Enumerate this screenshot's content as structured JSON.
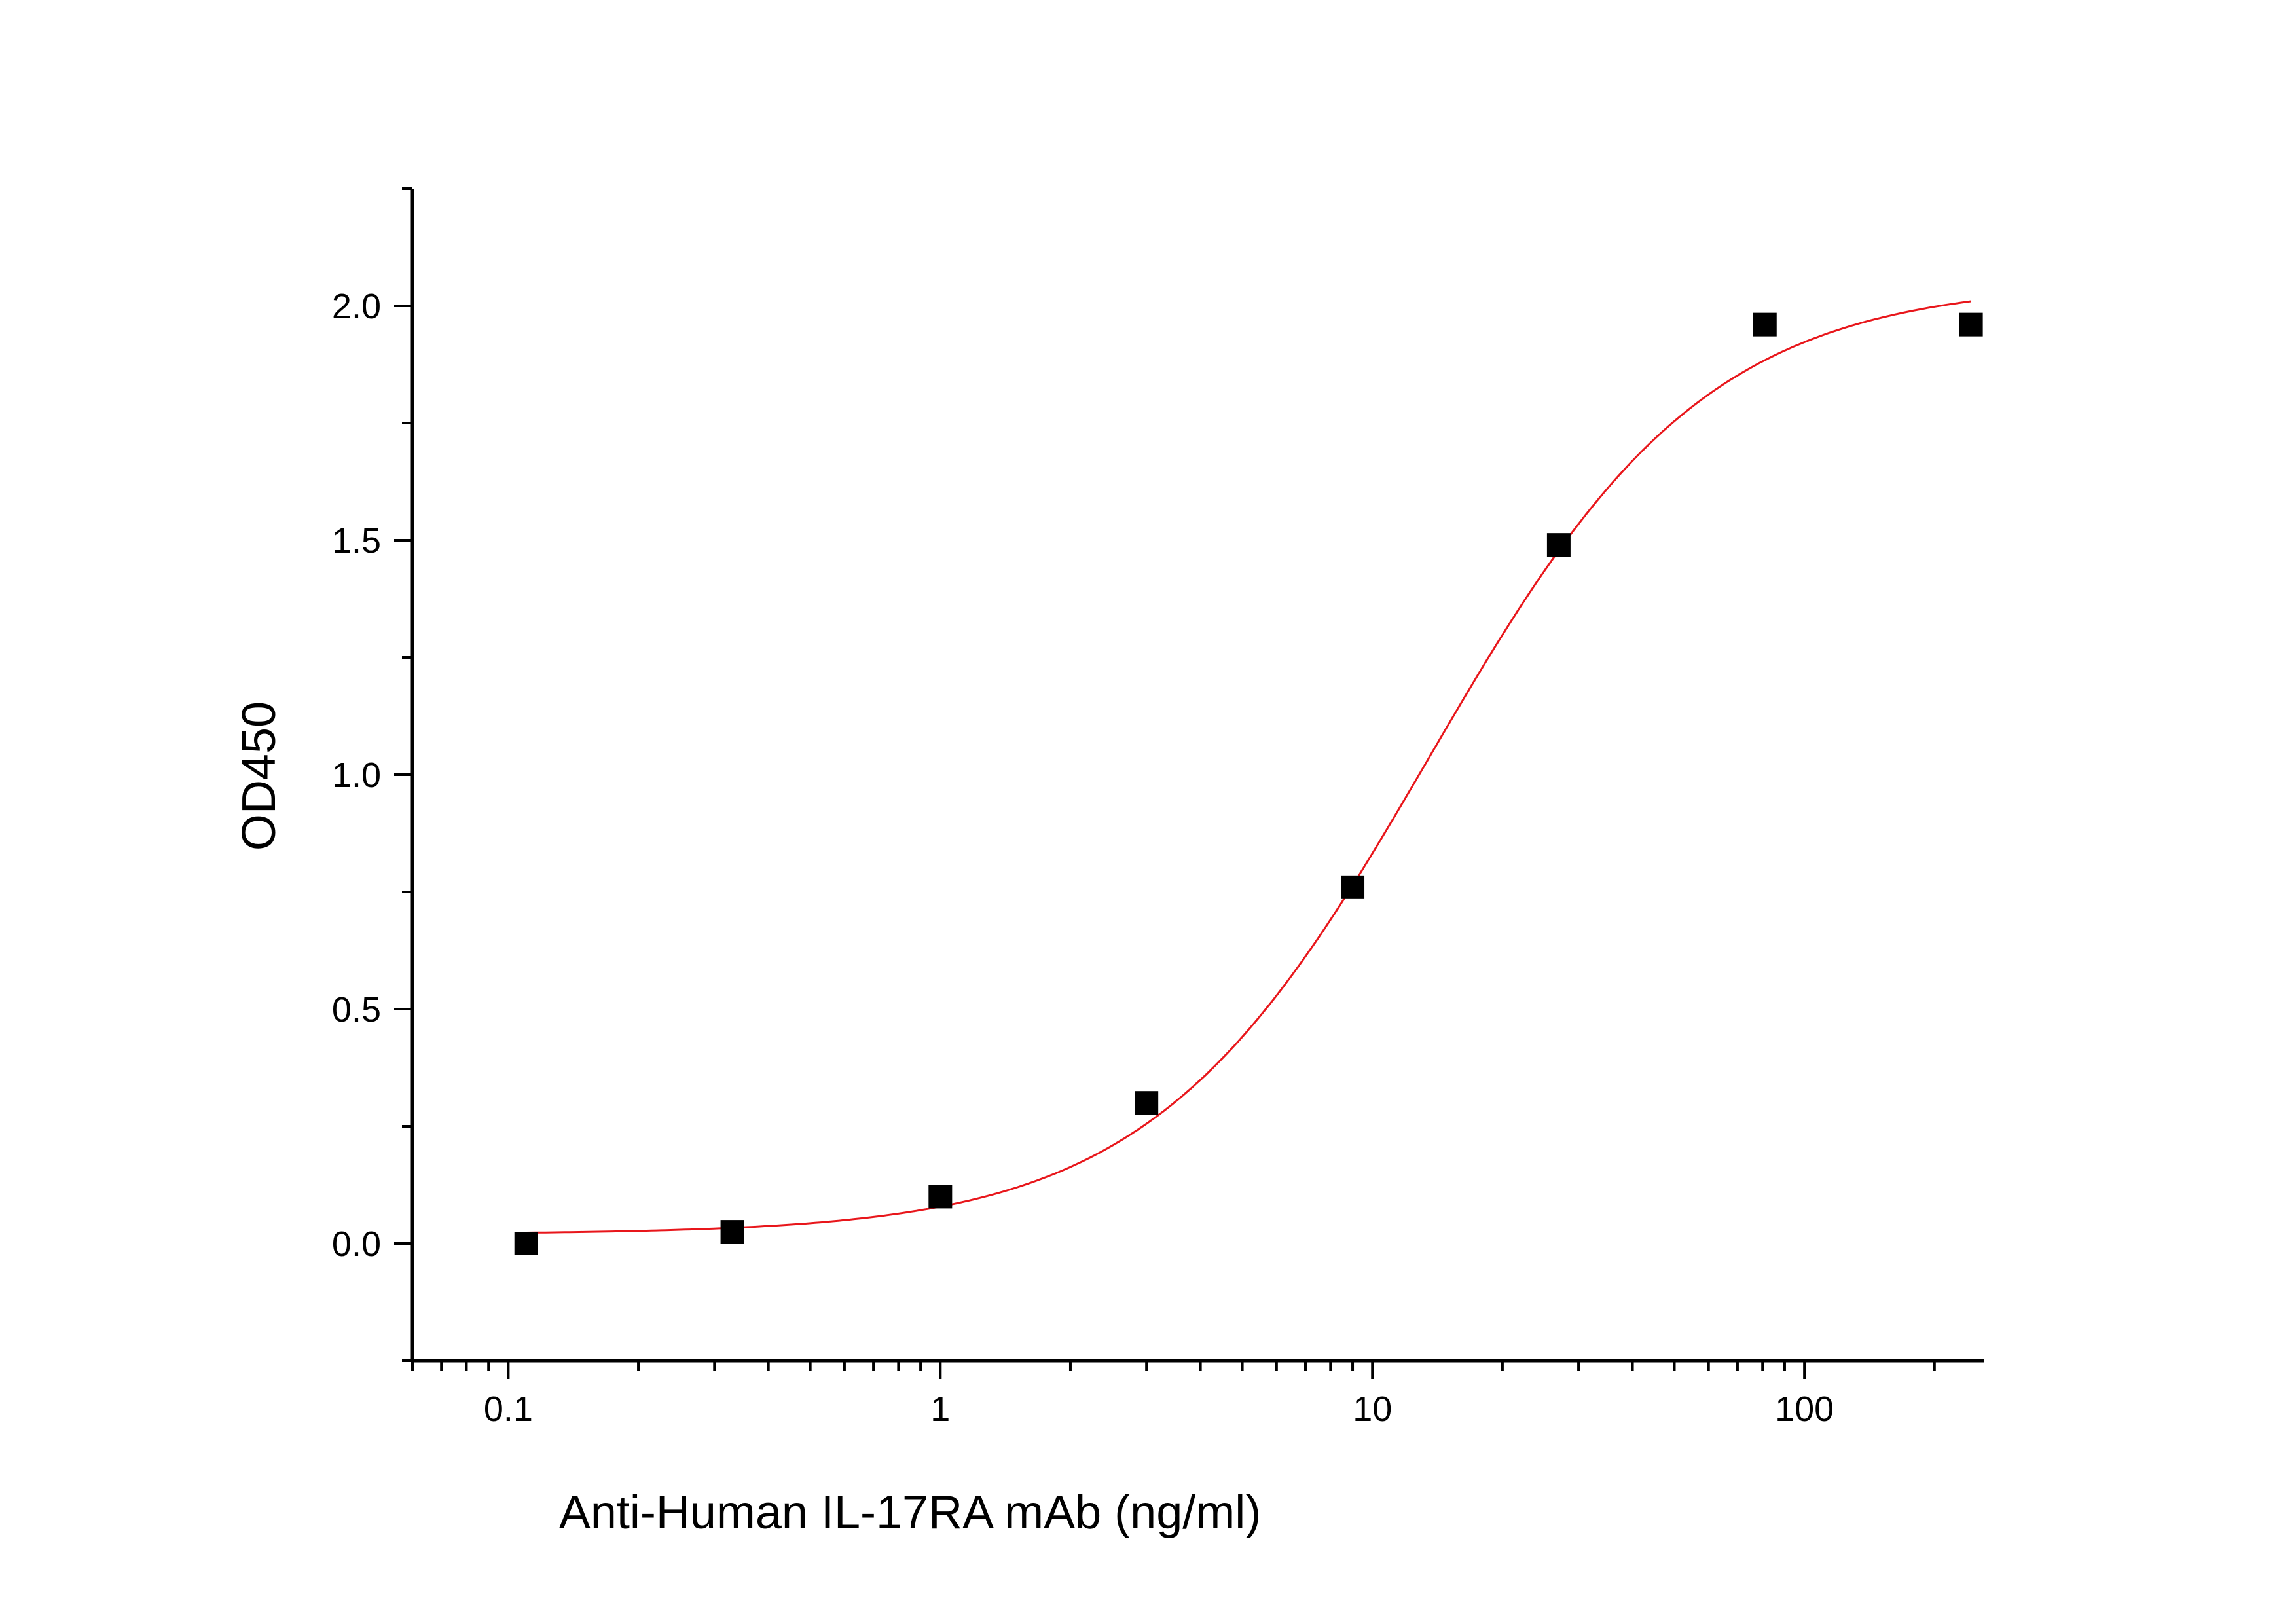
{
  "chart_data": {
    "type": "scatter",
    "title": "",
    "xlabel": "Anti-Human IL-17RA mAb (ng/ml)",
    "ylabel": "OD450",
    "xscale": "log",
    "xlim": [
      0.06,
      260
    ],
    "ylim": [
      -0.25,
      2.25
    ],
    "grid": false,
    "legend": "none",
    "x_ticks": [
      {
        "value": 0.1,
        "label": "0.1"
      },
      {
        "value": 1,
        "label": "1"
      },
      {
        "value": 10,
        "label": "10"
      },
      {
        "value": 100,
        "label": "100"
      }
    ],
    "y_ticks": [
      {
        "value": 0.0,
        "label": "0.0"
      },
      {
        "value": 0.5,
        "label": "0.5"
      },
      {
        "value": 1.0,
        "label": "1.0"
      },
      {
        "value": 1.5,
        "label": "1.5"
      },
      {
        "value": 2.0,
        "label": "2.0"
      }
    ],
    "series": [
      {
        "marker": "square",
        "color": "#000000",
        "x": [
          0.11,
          0.33,
          1.0,
          3.0,
          9.0,
          27.0,
          81.0,
          243.0
        ],
        "y": [
          0.0,
          0.025,
          0.1,
          0.3,
          0.76,
          1.49,
          1.96,
          1.96
        ]
      }
    ],
    "fit_curve": {
      "color": "#e8161b",
      "model": "4PL",
      "bottom": 0.02,
      "top": 2.05,
      "ec50": 13.5,
      "hill": 1.35,
      "x_range": [
        0.11,
        243.0
      ]
    }
  }
}
